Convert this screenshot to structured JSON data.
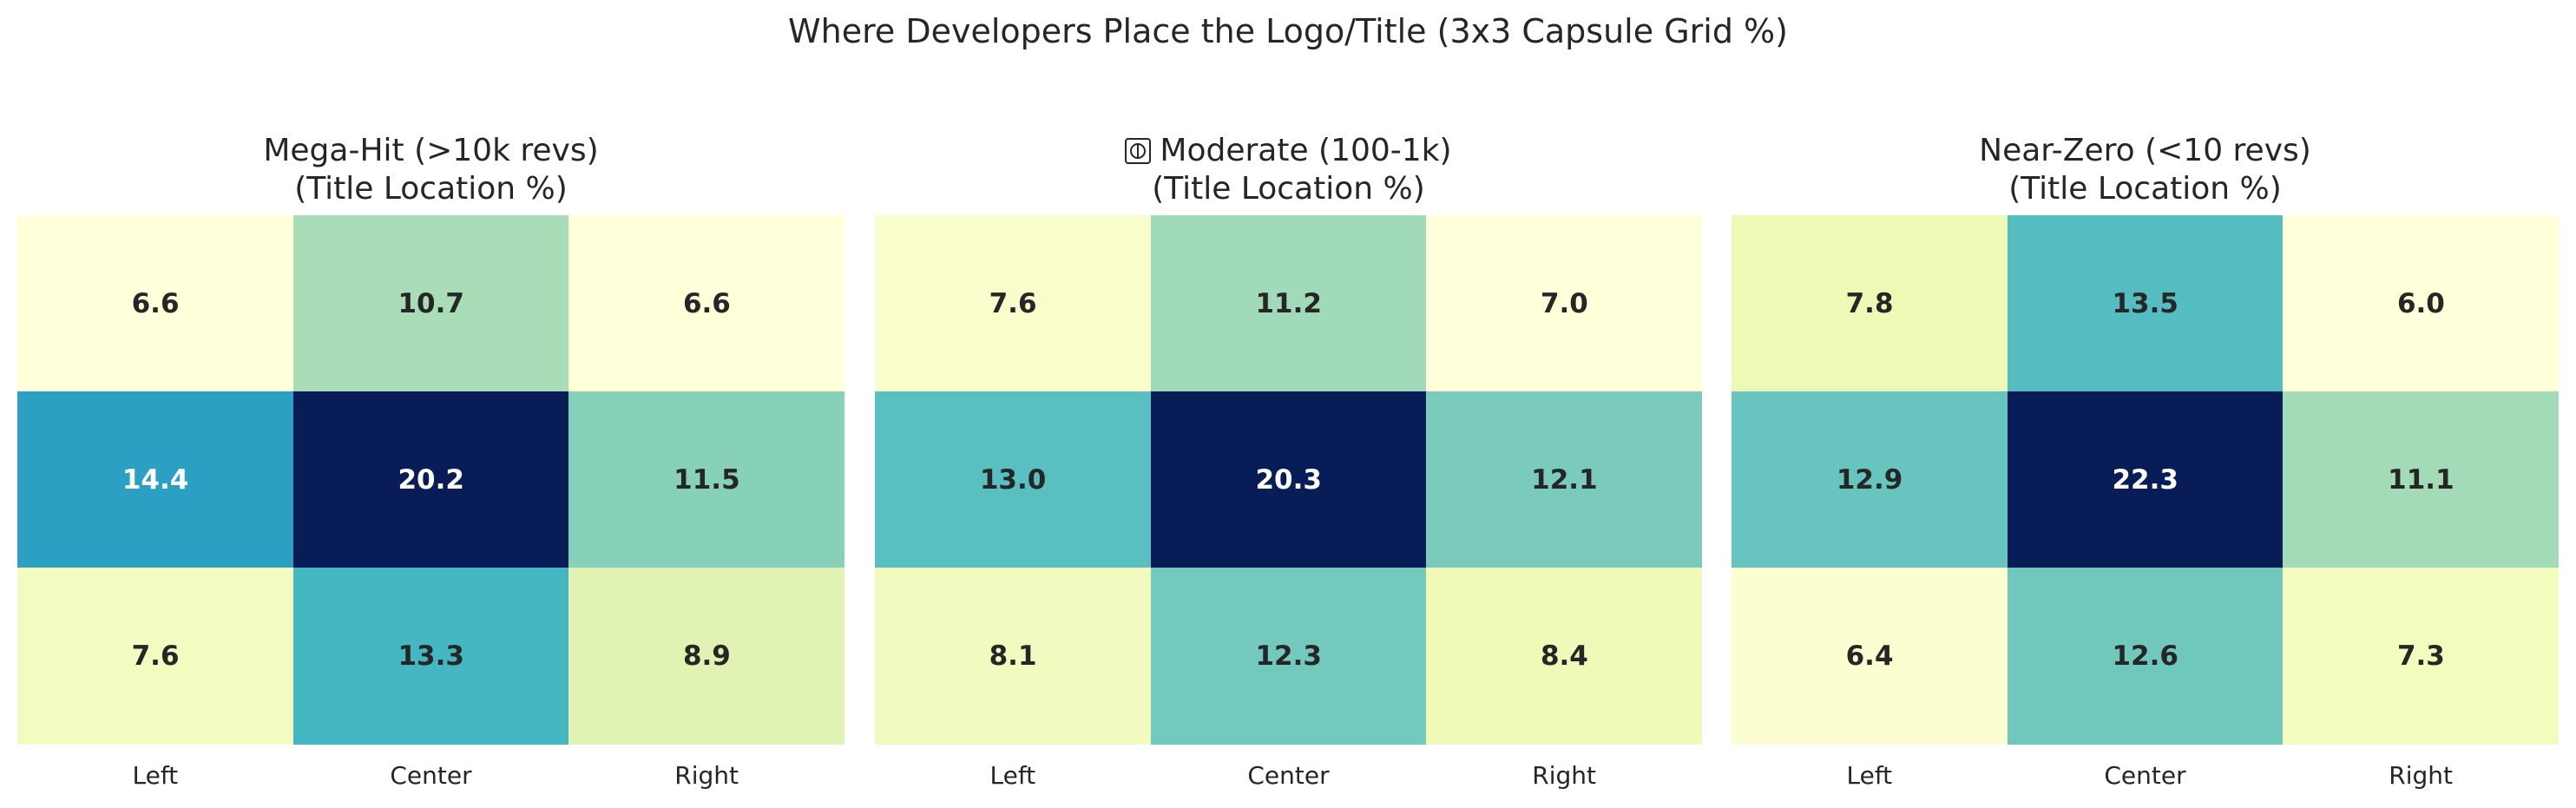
{
  "figure": {
    "suptitle": "Where Developers Place the Logo/Title (3x3 Capsule Grid %)"
  },
  "chart_data": [
    {
      "type": "heatmap",
      "title_line1": "Mega-Hit (>10k revs)",
      "title_line2": "(Title Location %)",
      "title_icon": "",
      "columns": [
        "Left",
        "Center",
        "Right"
      ],
      "values": [
        [
          6.6,
          10.7,
          6.6
        ],
        [
          14.4,
          20.2,
          11.5
        ],
        [
          7.6,
          13.3,
          8.9
        ]
      ],
      "colormap": "YlGnBu",
      "value_range": [
        6.6,
        20.2
      ],
      "grid": false,
      "colorbar": false
    },
    {
      "type": "heatmap",
      "title_line1": "Moderate (100-1k)",
      "title_line2": "(Title Location %)",
      "title_icon": "globe-icon",
      "columns": [
        "Left",
        "Center",
        "Right"
      ],
      "values": [
        [
          7.6,
          11.2,
          7.0
        ],
        [
          13.0,
          20.3,
          12.1
        ],
        [
          8.1,
          12.3,
          8.4
        ]
      ],
      "colormap": "YlGnBu",
      "value_range": [
        7.0,
        20.3
      ],
      "grid": false,
      "colorbar": false
    },
    {
      "type": "heatmap",
      "title_line1": "Near-Zero (<10 revs)",
      "title_line2": "(Title Location %)",
      "title_icon": "",
      "columns": [
        "Left",
        "Center",
        "Right"
      ],
      "values": [
        [
          7.8,
          13.5,
          6.0
        ],
        [
          12.9,
          22.3,
          11.1
        ],
        [
          6.4,
          12.6,
          7.3
        ]
      ],
      "colormap": "YlGnBu",
      "value_range": [
        6.0,
        22.3
      ],
      "grid": false,
      "colorbar": false
    }
  ]
}
